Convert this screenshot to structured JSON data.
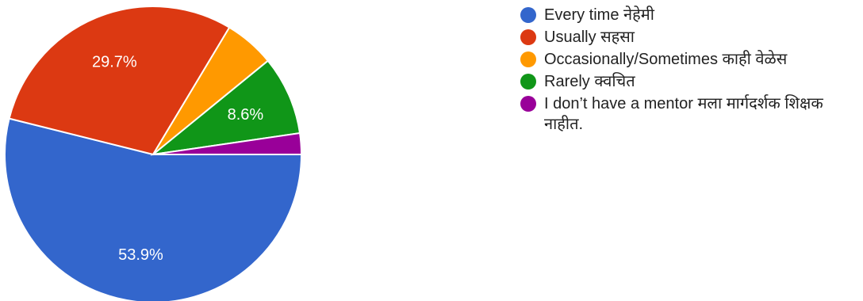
{
  "chart_data": {
    "type": "pie",
    "start_angle_deg": 90,
    "direction": "clockwise",
    "slices": [
      {
        "label": "Every time नेहेमी",
        "value": 53.9,
        "display": "53.9%",
        "color": "#3366cc"
      },
      {
        "label": "Usually सहसा",
        "value": 29.7,
        "display": "29.7%",
        "color": "#dc3912"
      },
      {
        "label": "Occasionally/Sometimes काही वेळेस",
        "value": 5.5,
        "display": "",
        "color": "#ff9900"
      },
      {
        "label": "Rarely क्वचित",
        "value": 8.6,
        "display": "8.6%",
        "color": "#109618"
      },
      {
        "label": "I don’t have a mentor मला मार्गदर्शक शिक्षक नाहीत.",
        "value": 2.3,
        "display": "",
        "color": "#990099"
      }
    ],
    "legend_position": "right"
  }
}
